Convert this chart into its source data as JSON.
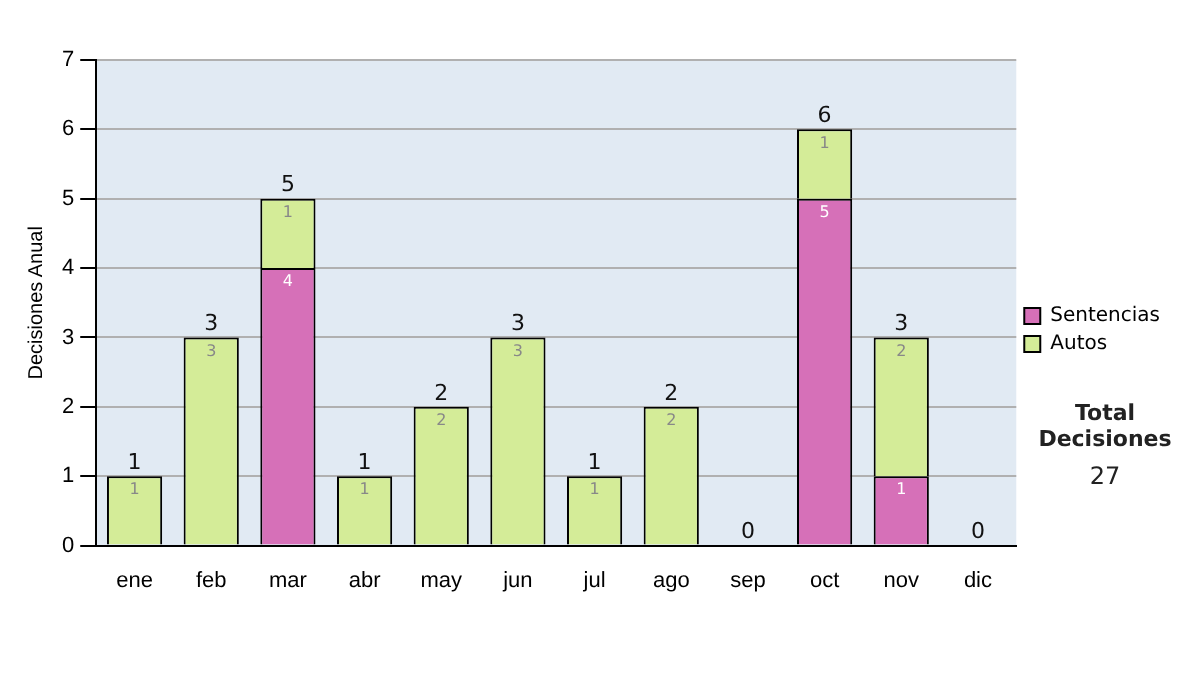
{
  "chart_data": {
    "type": "bar",
    "stacked": true,
    "ylabel": "Decisiones Anual",
    "categories": [
      "ene",
      "feb",
      "mar",
      "abr",
      "may",
      "jun",
      "jul",
      "ago",
      "sep",
      "oct",
      "nov",
      "dic"
    ],
    "series": [
      {
        "name": "Sentencias",
        "color": "#d670b8",
        "values": [
          0,
          0,
          4,
          0,
          0,
          0,
          0,
          0,
          0,
          5,
          1,
          0
        ],
        "value_labels": [
          null,
          null,
          "4",
          null,
          null,
          null,
          null,
          null,
          null,
          "5",
          "1",
          null
        ]
      },
      {
        "name": "Autos",
        "color": "#d4ec98",
        "values": [
          1,
          3,
          1,
          1,
          2,
          3,
          1,
          2,
          0,
          1,
          2,
          0
        ],
        "value_labels": [
          "1",
          "3",
          "1",
          "1",
          "2",
          "3",
          "1",
          "2",
          null,
          "1",
          "2",
          null
        ]
      }
    ],
    "totals": [
      "1",
      "3",
      "5",
      "1",
      "2",
      "3",
      "1",
      "2",
      "0",
      "6",
      "3",
      "0"
    ],
    "ylim": [
      0,
      7
    ],
    "yticks": [
      0,
      1,
      2,
      3,
      4,
      5,
      6,
      7
    ],
    "grid": "y",
    "legend": "right",
    "annotations": [
      "Total Decisiones",
      "27"
    ]
  }
}
